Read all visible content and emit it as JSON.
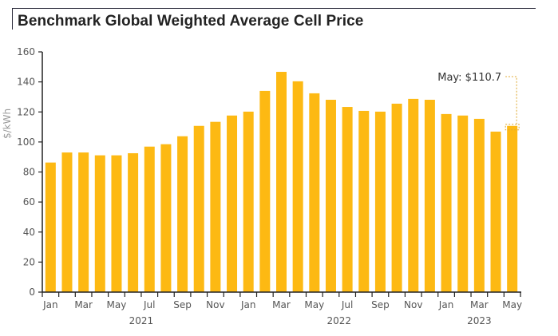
{
  "chart_data": {
    "type": "bar",
    "title": "Benchmark Global Weighted Average Cell Price",
    "xlabel": "",
    "ylabel": "$/kWh",
    "ylim": [
      0,
      160
    ],
    "yticks": [
      0,
      20,
      40,
      60,
      80,
      100,
      120,
      140,
      160
    ],
    "grid": false,
    "bar_color": "#FDB913",
    "categories": [
      "Jan 2021",
      "Feb 2021",
      "Mar 2021",
      "Apr 2021",
      "May 2021",
      "Jun 2021",
      "Jul 2021",
      "Aug 2021",
      "Sep 2021",
      "Oct 2021",
      "Nov 2021",
      "Dec 2021",
      "Jan 2022",
      "Feb 2022",
      "Mar 2022",
      "Apr 2022",
      "May 2022",
      "Jun 2022",
      "Jul 2022",
      "Aug 2022",
      "Sep 2022",
      "Oct 2022",
      "Nov 2022",
      "Dec 2022",
      "Jan 2023",
      "Feb 2023",
      "Mar 2023",
      "Apr 2023",
      "May 2023"
    ],
    "values": [
      86.3,
      93.0,
      93.0,
      91.1,
      91.1,
      92.5,
      96.9,
      98.5,
      103.8,
      110.7,
      113.4,
      117.6,
      120.2,
      134.0,
      146.7,
      140.4,
      132.4,
      128.1,
      123.3,
      120.7,
      120.2,
      125.5,
      128.7,
      128.1,
      118.6,
      117.6,
      115.4,
      106.9,
      110.7
    ],
    "xtick_labels": [
      {
        "index": 0,
        "label": "Jan"
      },
      {
        "index": 2,
        "label": "Mar"
      },
      {
        "index": 4,
        "label": "May"
      },
      {
        "index": 6,
        "label": "Jul"
      },
      {
        "index": 8,
        "label": "Sep"
      },
      {
        "index": 10,
        "label": "Nov"
      },
      {
        "index": 12,
        "label": "Jan"
      },
      {
        "index": 14,
        "label": "Mar"
      },
      {
        "index": 16,
        "label": "May"
      },
      {
        "index": 18,
        "label": "Jul"
      },
      {
        "index": 20,
        "label": "Sep"
      },
      {
        "index": 22,
        "label": "Nov"
      },
      {
        "index": 24,
        "label": "Jan"
      },
      {
        "index": 26,
        "label": "Mar"
      },
      {
        "index": 28,
        "label": "May"
      }
    ],
    "year_labels": [
      {
        "center_index": 5.5,
        "label": "2021"
      },
      {
        "center_index": 17.5,
        "label": "2022"
      },
      {
        "center_index": 26,
        "label": "2023"
      }
    ],
    "annotation": {
      "index": 28,
      "text": "May: $110.7",
      "color": "#E0A930"
    }
  }
}
